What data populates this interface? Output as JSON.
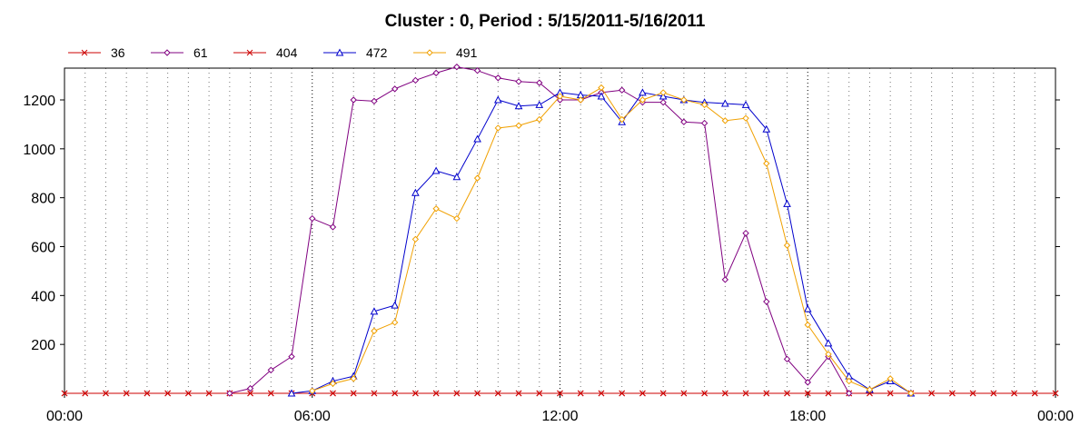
{
  "chart_data": {
    "type": "line",
    "title": "Cluster : 0, Period : 5/15/2011-5/16/2011",
    "xlabel": "",
    "ylabel": "",
    "x_unit": "hours since 5/15/2011 00:00",
    "xlim": [
      0,
      24
    ],
    "ylim": [
      0,
      1330
    ],
    "x_ticks": [
      {
        "x": 0,
        "label": "00:00"
      },
      {
        "x": 6,
        "label": "06:00"
      },
      {
        "x": 12,
        "label": "12:00"
      },
      {
        "x": 18,
        "label": "18:00"
      },
      {
        "x": 24,
        "label": "00:00"
      }
    ],
    "y_ticks": [
      200,
      400,
      600,
      800,
      1000,
      1200
    ],
    "grid": "dotted vertical lines every 30 minutes",
    "legend_position": "top-left",
    "x": [
      0,
      0.5,
      1,
      1.5,
      2,
      2.5,
      3,
      3.5,
      4,
      4.5,
      5,
      5.5,
      6,
      6.5,
      7,
      7.5,
      8,
      8.5,
      9,
      9.5,
      10,
      10.5,
      11,
      11.5,
      12,
      12.5,
      13,
      13.5,
      14,
      14.5,
      15,
      15.5,
      16,
      16.5,
      17,
      17.5,
      18,
      18.5,
      19,
      19.5,
      20,
      20.5,
      21,
      21.5,
      22,
      22.5,
      23,
      23.5,
      24
    ],
    "series": [
      {
        "name": "36",
        "color": "#cc0000",
        "marker": "x",
        "values": [
          0,
          0,
          0,
          0,
          0,
          0,
          0,
          0,
          0,
          0,
          0,
          0,
          0,
          0,
          0,
          0,
          0,
          0,
          0,
          0,
          0,
          0,
          0,
          0,
          0,
          0,
          0,
          0,
          0,
          0,
          0,
          0,
          0,
          0,
          0,
          0,
          0,
          0,
          0,
          0,
          0,
          0,
          0,
          0,
          0,
          0,
          0,
          0,
          0
        ]
      },
      {
        "name": "61",
        "color": "#800080",
        "marker": "diamond",
        "values": [
          null,
          null,
          null,
          null,
          null,
          null,
          null,
          null,
          0,
          20,
          95,
          150,
          715,
          680,
          1200,
          1195,
          1245,
          1280,
          1310,
          1335,
          1320,
          1290,
          1275,
          1270,
          1200,
          1200,
          1230,
          1240,
          1190,
          1190,
          1110,
          1105,
          465,
          655,
          375,
          140,
          45,
          150,
          0,
          null,
          null,
          null,
          null,
          null,
          null,
          null,
          null,
          null,
          null
        ]
      },
      {
        "name": "404",
        "color": "#cc0000",
        "marker": "x",
        "values": [
          0,
          0,
          0,
          0,
          0,
          0,
          0,
          0,
          0,
          0,
          0,
          0,
          0,
          0,
          0,
          0,
          0,
          0,
          0,
          0,
          0,
          0,
          0,
          0,
          0,
          0,
          0,
          0,
          0,
          0,
          0,
          0,
          0,
          0,
          0,
          0,
          0,
          0,
          0,
          0,
          0,
          0,
          0,
          0,
          0,
          0,
          0,
          0,
          0
        ]
      },
      {
        "name": "472",
        "color": "#0000cc",
        "marker": "triangle",
        "values": [
          null,
          null,
          null,
          null,
          null,
          null,
          null,
          null,
          null,
          null,
          null,
          0,
          10,
          50,
          70,
          335,
          360,
          820,
          910,
          885,
          1040,
          1200,
          1175,
          1180,
          1230,
          1220,
          1215,
          1110,
          1230,
          1215,
          1200,
          1190,
          1185,
          1180,
          1080,
          775,
          345,
          205,
          70,
          15,
          50,
          0,
          null,
          null,
          null,
          null,
          null,
          null,
          null
        ]
      },
      {
        "name": "491",
        "color": "#f0a000",
        "marker": "diamond",
        "values": [
          null,
          null,
          null,
          null,
          null,
          null,
          null,
          null,
          null,
          null,
          null,
          null,
          10,
          40,
          60,
          255,
          290,
          630,
          755,
          715,
          880,
          1085,
          1095,
          1120,
          1215,
          1200,
          1250,
          1120,
          1200,
          1230,
          1200,
          1180,
          1115,
          1125,
          940,
          605,
          280,
          160,
          50,
          15,
          60,
          0,
          null,
          null,
          null,
          null,
          null,
          null,
          null
        ]
      }
    ]
  }
}
